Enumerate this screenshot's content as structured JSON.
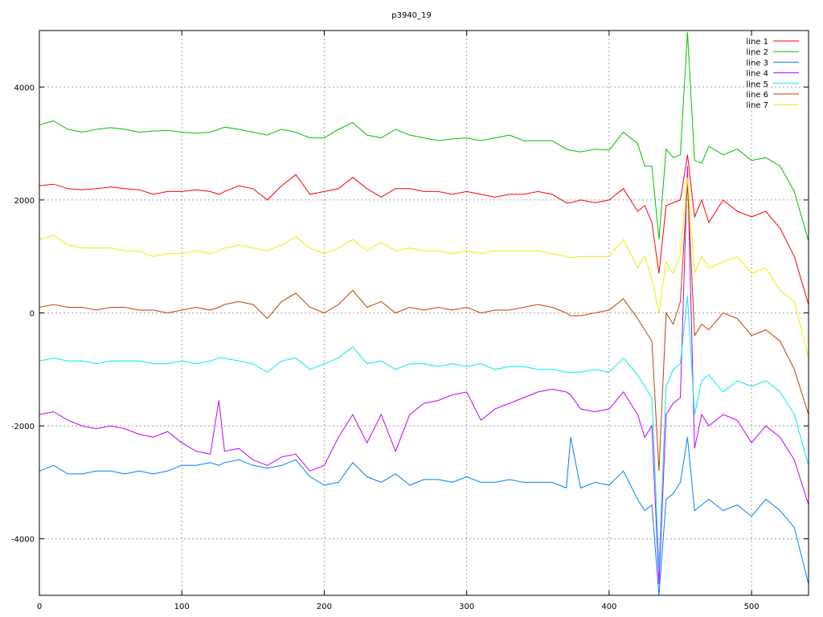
{
  "chart_data": {
    "type": "line",
    "title": "p3940_19",
    "xlabel": "",
    "ylabel": "",
    "xlim": [
      0,
      540
    ],
    "ylim": [
      -5000,
      5000
    ],
    "xticks": [
      0,
      100,
      200,
      300,
      400,
      500
    ],
    "yticks": [
      -4000,
      -2000,
      0,
      2000,
      4000
    ],
    "xtick_labels": [
      "0",
      "100",
      "200",
      "300",
      "400",
      "500"
    ],
    "ytick_labels": [
      "-4000",
      "-2000",
      "0",
      "2000",
      "4000"
    ],
    "grid": true,
    "legend_position": "top-right",
    "x": [
      0,
      10,
      20,
      30,
      40,
      50,
      60,
      70,
      80,
      90,
      100,
      110,
      120,
      126,
      130,
      140,
      150,
      160,
      170,
      180,
      190,
      200,
      210,
      220,
      230,
      240,
      250,
      260,
      270,
      280,
      290,
      300,
      310,
      320,
      330,
      340,
      350,
      360,
      370,
      373,
      380,
      390,
      400,
      410,
      420,
      425,
      430,
      435,
      440,
      445,
      450,
      455,
      460,
      465,
      470,
      480,
      490,
      500,
      510,
      520,
      530,
      540
    ],
    "series": [
      {
        "name": "line 1",
        "color": "#ff0000",
        "values": [
          2250,
          2280,
          2200,
          2180,
          2200,
          2230,
          2200,
          2180,
          2100,
          2150,
          2150,
          2180,
          2150,
          2100,
          2150,
          2250,
          2200,
          2000,
          2250,
          2450,
          2100,
          2150,
          2200,
          2400,
          2200,
          2050,
          2200,
          2200,
          2150,
          2150,
          2100,
          2150,
          2100,
          2050,
          2100,
          2100,
          2150,
          2100,
          1950,
          1950,
          2000,
          1950,
          2000,
          2200,
          1800,
          1900,
          1600,
          700,
          1900,
          1950,
          2000,
          2800,
          1700,
          2000,
          1600,
          2000,
          1800,
          1700,
          1800,
          1500,
          1000,
          150
        ]
      },
      {
        "name": "line 2",
        "color": "#00c000",
        "values": [
          3330,
          3400,
          3250,
          3200,
          3250,
          3280,
          3250,
          3200,
          3220,
          3230,
          3200,
          3180,
          3200,
          3250,
          3290,
          3250,
          3200,
          3150,
          3250,
          3200,
          3100,
          3100,
          3250,
          3370,
          3150,
          3100,
          3250,
          3150,
          3100,
          3050,
          3080,
          3100,
          3050,
          3100,
          3150,
          3050,
          3050,
          3050,
          2900,
          2880,
          2850,
          2900,
          2880,
          3200,
          3000,
          2600,
          2600,
          1300,
          2900,
          2750,
          2800,
          4970,
          2700,
          2650,
          2950,
          2800,
          2900,
          2700,
          2750,
          2600,
          2150,
          1270
        ]
      },
      {
        "name": "line 3",
        "color": "#0080ff",
        "values": [
          -2800,
          -2700,
          -2850,
          -2850,
          -2800,
          -2800,
          -2850,
          -2800,
          -2850,
          -2800,
          -2700,
          -2700,
          -2650,
          -2700,
          -2650,
          -2600,
          -2700,
          -2750,
          -2700,
          -2600,
          -2900,
          -3050,
          -3000,
          -2650,
          -2900,
          -3000,
          -2850,
          -3050,
          -2950,
          -2950,
          -3000,
          -2900,
          -3000,
          -3000,
          -2950,
          -3000,
          -3000,
          -3000,
          -3100,
          -2200,
          -3100,
          -3000,
          -3050,
          -2800,
          -3300,
          -3500,
          -3400,
          -5000,
          -3300,
          -3200,
          -3000,
          -2200,
          -3500,
          -3400,
          -3300,
          -3500,
          -3400,
          -3600,
          -3300,
          -3500,
          -3800,
          -4800
        ]
      },
      {
        "name": "line 4",
        "color": "#c000ff",
        "values": [
          -1800,
          -1750,
          -1900,
          -2000,
          -2050,
          -2000,
          -2050,
          -2150,
          -2200,
          -2100,
          -2300,
          -2450,
          -2500,
          -1550,
          -2450,
          -2400,
          -2600,
          -2700,
          -2550,
          -2500,
          -2800,
          -2700,
          -2200,
          -1800,
          -2300,
          -1800,
          -2450,
          -1800,
          -1600,
          -1550,
          -1450,
          -1400,
          -1900,
          -1700,
          -1600,
          -1500,
          -1400,
          -1350,
          -1400,
          -1450,
          -1700,
          -1750,
          -1700,
          -1400,
          -1800,
          -2200,
          -2000,
          -4800,
          -1800,
          -1600,
          -1500,
          2600,
          -2400,
          -1800,
          -2000,
          -1800,
          -1900,
          -2300,
          -2000,
          -2200,
          -2600,
          -3400
        ]
      },
      {
        "name": "line 5",
        "color": "#00eeee",
        "values": [
          -850,
          -800,
          -850,
          -850,
          -900,
          -850,
          -850,
          -850,
          -900,
          -900,
          -850,
          -900,
          -850,
          -800,
          -800,
          -850,
          -900,
          -1050,
          -850,
          -800,
          -1000,
          -900,
          -800,
          -600,
          -900,
          -850,
          -1000,
          -900,
          -900,
          -950,
          -900,
          -950,
          -900,
          -1000,
          -950,
          -950,
          -1000,
          -1000,
          -1050,
          -1050,
          -1050,
          -1000,
          -1050,
          -800,
          -1100,
          -1300,
          -1500,
          -4500,
          -1300,
          -1000,
          -900,
          300,
          -1800,
          -1200,
          -1100,
          -1400,
          -1200,
          -1300,
          -1200,
          -1400,
          -1800,
          -2700
        ]
      },
      {
        "name": "line 6",
        "color": "#c04000",
        "values": [
          100,
          150,
          100,
          100,
          50,
          100,
          100,
          50,
          50,
          0,
          50,
          100,
          50,
          100,
          150,
          200,
          150,
          -100,
          200,
          350,
          100,
          0,
          150,
          400,
          100,
          200,
          0,
          100,
          50,
          100,
          50,
          100,
          0,
          50,
          50,
          100,
          150,
          100,
          0,
          -50,
          -50,
          0,
          50,
          250,
          -100,
          -300,
          -500,
          -2800,
          0,
          -200,
          200,
          2300,
          -400,
          -200,
          -300,
          0,
          -100,
          -400,
          -300,
          -500,
          -1000,
          -1800
        ]
      },
      {
        "name": "line 7",
        "color": "#eeee00",
        "values": [
          1300,
          1380,
          1200,
          1150,
          1150,
          1150,
          1100,
          1100,
          1000,
          1050,
          1050,
          1100,
          1050,
          1100,
          1150,
          1200,
          1150,
          1100,
          1200,
          1350,
          1150,
          1050,
          1150,
          1300,
          1100,
          1250,
          1100,
          1150,
          1100,
          1100,
          1050,
          1100,
          1050,
          1100,
          1100,
          1100,
          1100,
          1050,
          1000,
          980,
          1000,
          1000,
          1000,
          1300,
          800,
          1000,
          600,
          0,
          900,
          700,
          1050,
          2400,
          700,
          1000,
          800,
          900,
          1000,
          700,
          800,
          400,
          200,
          -800
        ]
      }
    ]
  }
}
